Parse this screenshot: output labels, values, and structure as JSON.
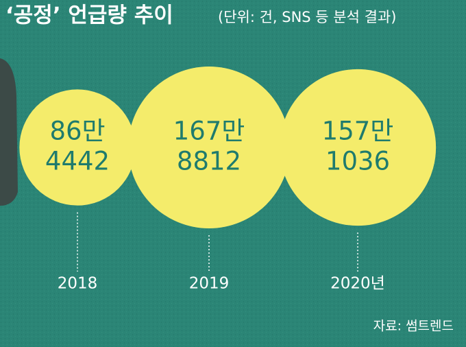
{
  "chart_data": {
    "type": "bubble",
    "title": "‘공정’ 언급량 추이",
    "subtitle": "(단위: 건, SNS 등 분석 결과)",
    "categories": [
      "2018",
      "2019",
      "2020년"
    ],
    "values": [
      864442,
      1678812,
      1571036
    ],
    "value_labels": [
      [
        "86만",
        "4442"
      ],
      [
        "167만",
        "8812"
      ],
      [
        "157만",
        "1036"
      ]
    ],
    "color": "#f4ec6b",
    "source": "자료: 썸트렌드"
  }
}
